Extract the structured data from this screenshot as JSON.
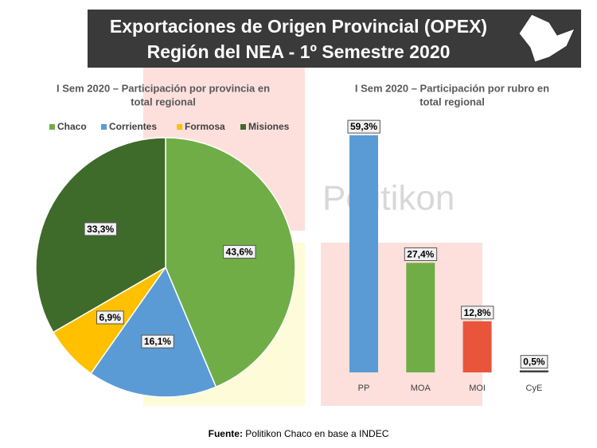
{
  "header": {
    "title_lines": [
      "Exportaciones de Origen Provincial (OPEX)",
      "Región del NEA - 1º Semestre 2020"
    ]
  },
  "watermark": "Politikon",
  "chart_data": [
    {
      "type": "pie",
      "title_lines": [
        "I Sem 2020 – Participación por provincia en",
        "total regional"
      ],
      "categories": [
        "Chaco",
        "Corrientes",
        "Formosa",
        "Misiones"
      ],
      "values": [
        43.6,
        16.1,
        6.9,
        33.3
      ],
      "value_labels": [
        "43,6%",
        "16,1%",
        "6,9%",
        "33,3%"
      ],
      "colors": [
        "#70ad47",
        "#5b9bd5",
        "#ffc000",
        "#3e6a2a"
      ],
      "legend": "top"
    },
    {
      "type": "bar",
      "title_lines": [
        "I Sem 2020 – Participación por rubro en",
        "total regional"
      ],
      "categories": [
        "PP",
        "MOA",
        "MOI",
        "CyE"
      ],
      "values": [
        59.3,
        27.4,
        12.8,
        0.5
      ],
      "value_labels": [
        "59,3%",
        "27,4%",
        "12,8%",
        "0,5%"
      ],
      "colors": [
        "#5b9bd5",
        "#70ad47",
        "#e8553a",
        "#404040"
      ]
    }
  ],
  "source": {
    "label": "Fuente:",
    "text": "Politikon Chaco en base a INDEC"
  }
}
